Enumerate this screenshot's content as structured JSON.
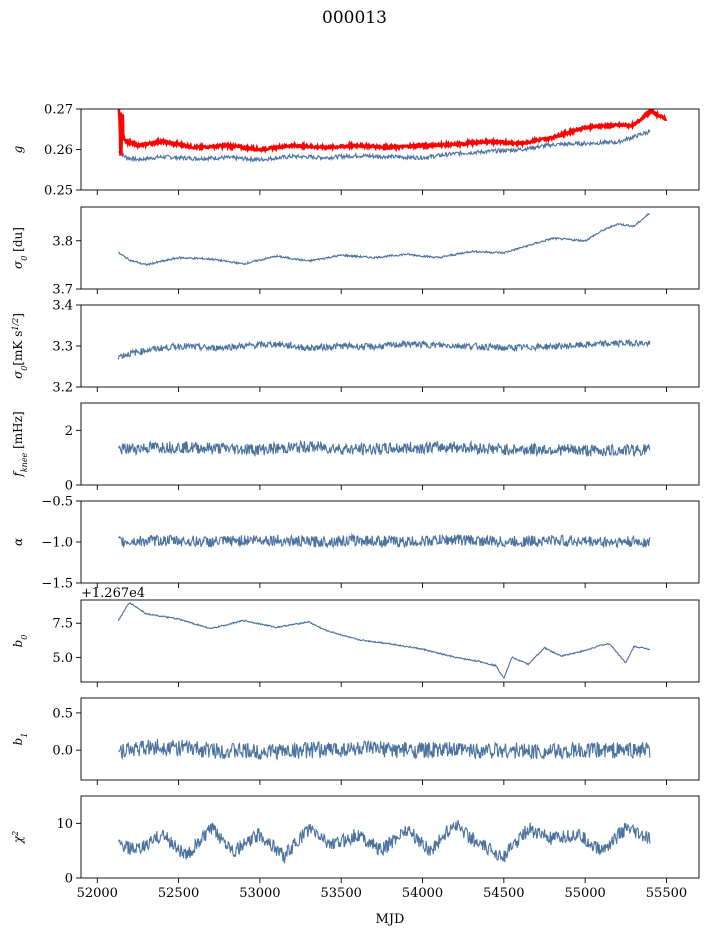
{
  "figure": {
    "title": "000013",
    "xlabel": "MJD"
  },
  "colors": {
    "series": "#4c72a0",
    "model": "#ff0000",
    "axes": "#000000"
  },
  "chart_data": [
    {
      "type": "line",
      "ylabel": "g",
      "ylim": [
        0.25,
        0.27
      ],
      "yticks": [
        "0.25",
        "0.26",
        "0.27"
      ],
      "yticks_values": [
        0.25,
        0.26,
        0.27
      ],
      "series": [
        {
          "color": "#4c72a0",
          "x": [
            52130,
            52180,
            52250,
            52400,
            52600,
            52800,
            53000,
            53200,
            53400,
            53600,
            53800,
            54000,
            54200,
            54400,
            54600,
            54800,
            55000,
            55200,
            55400
          ],
          "y": [
            0.2595,
            0.258,
            0.2575,
            0.2582,
            0.2578,
            0.258,
            0.2575,
            0.2583,
            0.258,
            0.2585,
            0.2582,
            0.258,
            0.259,
            0.2595,
            0.26,
            0.2612,
            0.2615,
            0.2618,
            0.2645
          ]
        },
        {
          "color": "#ff0000",
          "x": [
            52130,
            52150,
            52180,
            52250,
            52400,
            52600,
            52800,
            53000,
            53200,
            53400,
            53600,
            53800,
            54000,
            54200,
            54400,
            54600,
            54800,
            55000,
            55200,
            55300,
            55400,
            55500
          ],
          "y": [
            0.2655,
            0.2635,
            0.262,
            0.261,
            0.262,
            0.2605,
            0.261,
            0.26,
            0.261,
            0.2605,
            0.261,
            0.2605,
            0.261,
            0.2612,
            0.262,
            0.2615,
            0.263,
            0.2655,
            0.266,
            0.266,
            0.2695,
            0.2675
          ]
        }
      ]
    },
    {
      "type": "line",
      "ylabel": "σ0 [du]",
      "ylim": [
        3.7,
        3.87
      ],
      "yticks": [
        "3.7",
        "3.8"
      ],
      "yticks_values": [
        3.7,
        3.8
      ],
      "series": [
        {
          "color": "#4c72a0",
          "x": [
            52130,
            52200,
            52300,
            52500,
            52700,
            52900,
            53100,
            53300,
            53500,
            53700,
            53900,
            54100,
            54300,
            54500,
            54650,
            54800,
            55000,
            55100,
            55200,
            55300,
            55400
          ],
          "y": [
            3.775,
            3.76,
            3.75,
            3.765,
            3.762,
            3.752,
            3.768,
            3.758,
            3.77,
            3.765,
            3.772,
            3.765,
            3.778,
            3.775,
            3.79,
            3.805,
            3.8,
            3.82,
            3.835,
            3.83,
            3.858
          ]
        }
      ]
    },
    {
      "type": "line",
      "ylabel": "σ0[mK s^1/2]",
      "ylim": [
        3.2,
        3.4
      ],
      "yticks": [
        "3.2",
        "3.3",
        "3.4"
      ],
      "yticks_values": [
        3.2,
        3.3,
        3.4
      ],
      "series": [
        {
          "color": "#4c72a0",
          "x": [
            52130,
            52300,
            52500,
            52700,
            52900,
            53100,
            53300,
            53500,
            53700,
            53900,
            54100,
            54300,
            54500,
            54700,
            54900,
            55100,
            55300,
            55400
          ],
          "y": [
            3.275,
            3.29,
            3.3,
            3.295,
            3.3,
            3.305,
            3.295,
            3.3,
            3.298,
            3.305,
            3.302,
            3.3,
            3.295,
            3.298,
            3.3,
            3.305,
            3.308,
            3.305
          ]
        }
      ]
    },
    {
      "type": "line",
      "ylabel": "fknee [mHz]",
      "ylim": [
        0,
        3
      ],
      "yticks": [
        "0",
        "2"
      ],
      "yticks_values": [
        0,
        2
      ],
      "series": [
        {
          "color": "#4c72a0",
          "x": [
            52130,
            52400,
            52700,
            53000,
            53300,
            53600,
            53900,
            54200,
            54500,
            54800,
            55100,
            55400
          ],
          "y": [
            1.3,
            1.4,
            1.35,
            1.3,
            1.4,
            1.3,
            1.35,
            1.4,
            1.3,
            1.3,
            1.25,
            1.3
          ]
        }
      ]
    },
    {
      "type": "line",
      "ylabel": "α",
      "ylim": [
        -1.5,
        -0.5
      ],
      "yticks": [
        "−1.5",
        "−1.0",
        "−0.5"
      ],
      "yticks_values": [
        -1.5,
        -1.0,
        -0.5
      ],
      "series": [
        {
          "color": "#4c72a0",
          "x": [
            52130,
            52400,
            52700,
            53000,
            53300,
            53600,
            53900,
            54200,
            54500,
            54800,
            55100,
            55400
          ],
          "y": [
            -1.0,
            -0.98,
            -1.0,
            -0.97,
            -1.0,
            -0.98,
            -1.0,
            -0.97,
            -1.0,
            -0.98,
            -1.0,
            -1.0
          ]
        }
      ]
    },
    {
      "type": "line",
      "ylabel": "b0",
      "offset_label": "+1.267e4",
      "ylim": [
        3.2,
        9.2
      ],
      "yticks": [
        "5.0",
        "7.5"
      ],
      "yticks_values": [
        5.0,
        7.5
      ],
      "series": [
        {
          "color": "#4c72a0",
          "x": [
            52130,
            52180,
            52200,
            52300,
            52500,
            52700,
            52900,
            53100,
            53300,
            53400,
            53600,
            53800,
            54000,
            54200,
            54350,
            54450,
            54500,
            54550,
            54650,
            54750,
            54850,
            55000,
            55100,
            55150,
            55250,
            55300,
            55400
          ],
          "y": [
            7.7,
            8.7,
            9.0,
            8.2,
            7.8,
            7.1,
            7.7,
            7.2,
            7.6,
            7.0,
            6.3,
            6.0,
            5.6,
            5.0,
            4.7,
            4.4,
            3.5,
            5.0,
            4.5,
            5.7,
            5.1,
            5.5,
            5.9,
            6.0,
            4.6,
            5.8,
            5.6
          ]
        }
      ]
    },
    {
      "type": "line",
      "ylabel": "b1",
      "ylim": [
        -0.4,
        0.7
      ],
      "yticks": [
        "0.0",
        "0.5"
      ],
      "yticks_values": [
        0.0,
        0.5
      ],
      "series": [
        {
          "color": "#4c72a0",
          "x": [
            52130,
            52400,
            52700,
            53000,
            53300,
            53600,
            53900,
            54200,
            54500,
            54800,
            55100,
            55400
          ],
          "y": [
            0.0,
            0.05,
            0.0,
            -0.02,
            0.0,
            0.02,
            0.0,
            0.0,
            0.0,
            -0.02,
            0.0,
            0.0
          ]
        }
      ]
    },
    {
      "type": "line",
      "ylabel": "χ²",
      "ylim": [
        0,
        15
      ],
      "yticks": [
        "0",
        "10"
      ],
      "yticks_values": [
        0,
        10
      ],
      "series": [
        {
          "color": "#4c72a0",
          "x": [
            52130,
            52250,
            52400,
            52550,
            52700,
            52850,
            53000,
            53150,
            53300,
            53450,
            53600,
            53750,
            53900,
            54050,
            54200,
            54350,
            54500,
            54650,
            54800,
            54950,
            55100,
            55250,
            55400
          ],
          "y": [
            6,
            5,
            8,
            4,
            9,
            5,
            8,
            4,
            9,
            6,
            8,
            5,
            9,
            5,
            10,
            6,
            4,
            9,
            7,
            8,
            5,
            9,
            7
          ]
        }
      ]
    }
  ],
  "xaxis": {
    "xlim": [
      51900,
      55700
    ],
    "ticks": [
      52000,
      52500,
      53000,
      53500,
      54000,
      54500,
      55000,
      55500
    ],
    "ticklabels": [
      "52000",
      "52500",
      "53000",
      "53500",
      "54000",
      "54500",
      "55000",
      "55500"
    ]
  }
}
